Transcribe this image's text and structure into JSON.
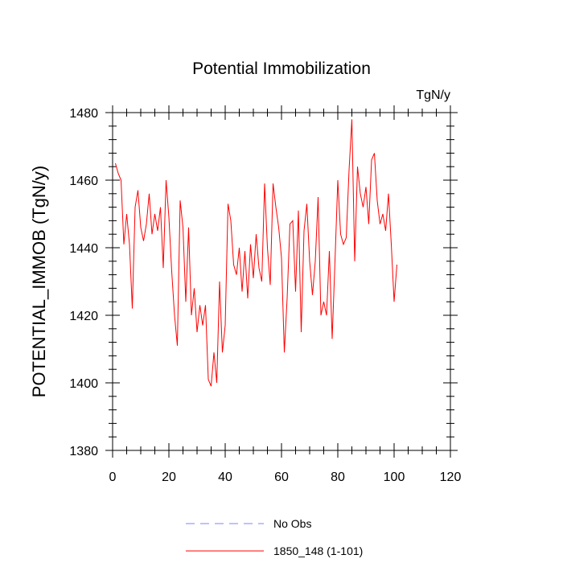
{
  "chart_data": {
    "type": "line",
    "title": "Potential Immobilization",
    "units_label": "TgN/y",
    "ylabel": "POTENTIAL_IMMOB  (TgN/y)",
    "xlabel": "",
    "xlim": [
      0,
      120
    ],
    "ylim": [
      1380,
      1480
    ],
    "x_ticks": [
      0,
      20,
      40,
      60,
      80,
      100,
      120
    ],
    "y_ticks": [
      1380,
      1400,
      1420,
      1440,
      1460,
      1480
    ],
    "x_minor_step": 5,
    "y_minor_step": 4,
    "grid": false,
    "legend": {
      "placement": "bottom",
      "entries": [
        {
          "label": "No Obs",
          "color": "#8080ff",
          "dashed": true
        },
        {
          "label": "1850_148 (1-101)",
          "color": "#ff0000",
          "dashed": false
        }
      ]
    },
    "series": [
      {
        "name": "1850_148 (1-101)",
        "color": "#ff0000",
        "x": [
          1,
          2,
          3,
          4,
          5,
          6,
          7,
          8,
          9,
          10,
          11,
          12,
          13,
          14,
          15,
          16,
          17,
          18,
          19,
          20,
          21,
          22,
          23,
          24,
          25,
          26,
          27,
          28,
          29,
          30,
          31,
          32,
          33,
          34,
          35,
          36,
          37,
          38,
          39,
          40,
          41,
          42,
          43,
          44,
          45,
          46,
          47,
          48,
          49,
          50,
          51,
          52,
          53,
          54,
          55,
          56,
          57,
          58,
          59,
          60,
          61,
          62,
          63,
          64,
          65,
          66,
          67,
          68,
          69,
          70,
          71,
          72,
          73,
          74,
          75,
          76,
          77,
          78,
          79,
          80,
          81,
          82,
          83,
          84,
          85,
          86,
          87,
          88,
          89,
          90,
          91,
          92,
          93,
          94,
          95,
          96,
          97,
          98,
          99,
          100,
          101
        ],
        "values": [
          1465,
          1462,
          1460,
          1441,
          1450,
          1441,
          1422,
          1452,
          1457,
          1446,
          1442,
          1447,
          1456,
          1444,
          1450,
          1445,
          1452,
          1434,
          1460,
          1449,
          1433,
          1420,
          1411,
          1454,
          1446,
          1424,
          1446,
          1420,
          1428,
          1415,
          1423,
          1417,
          1423,
          1401,
          1399,
          1409,
          1400,
          1430,
          1409,
          1417,
          1453,
          1448,
          1435,
          1432,
          1440,
          1427,
          1439,
          1425,
          1441,
          1431,
          1444,
          1434,
          1430,
          1459,
          1440,
          1429,
          1459,
          1452,
          1446,
          1437,
          1409,
          1425,
          1447,
          1448,
          1427,
          1451,
          1415,
          1445,
          1453,
          1436,
          1426,
          1436,
          1455,
          1420,
          1424,
          1420,
          1439,
          1413,
          1436,
          1460,
          1444,
          1441,
          1443,
          1463,
          1478,
          1436,
          1464,
          1456,
          1452,
          1458,
          1447,
          1466,
          1468,
          1454,
          1447,
          1450,
          1445,
          1456,
          1441,
          1424,
          1435
        ]
      }
    ]
  }
}
